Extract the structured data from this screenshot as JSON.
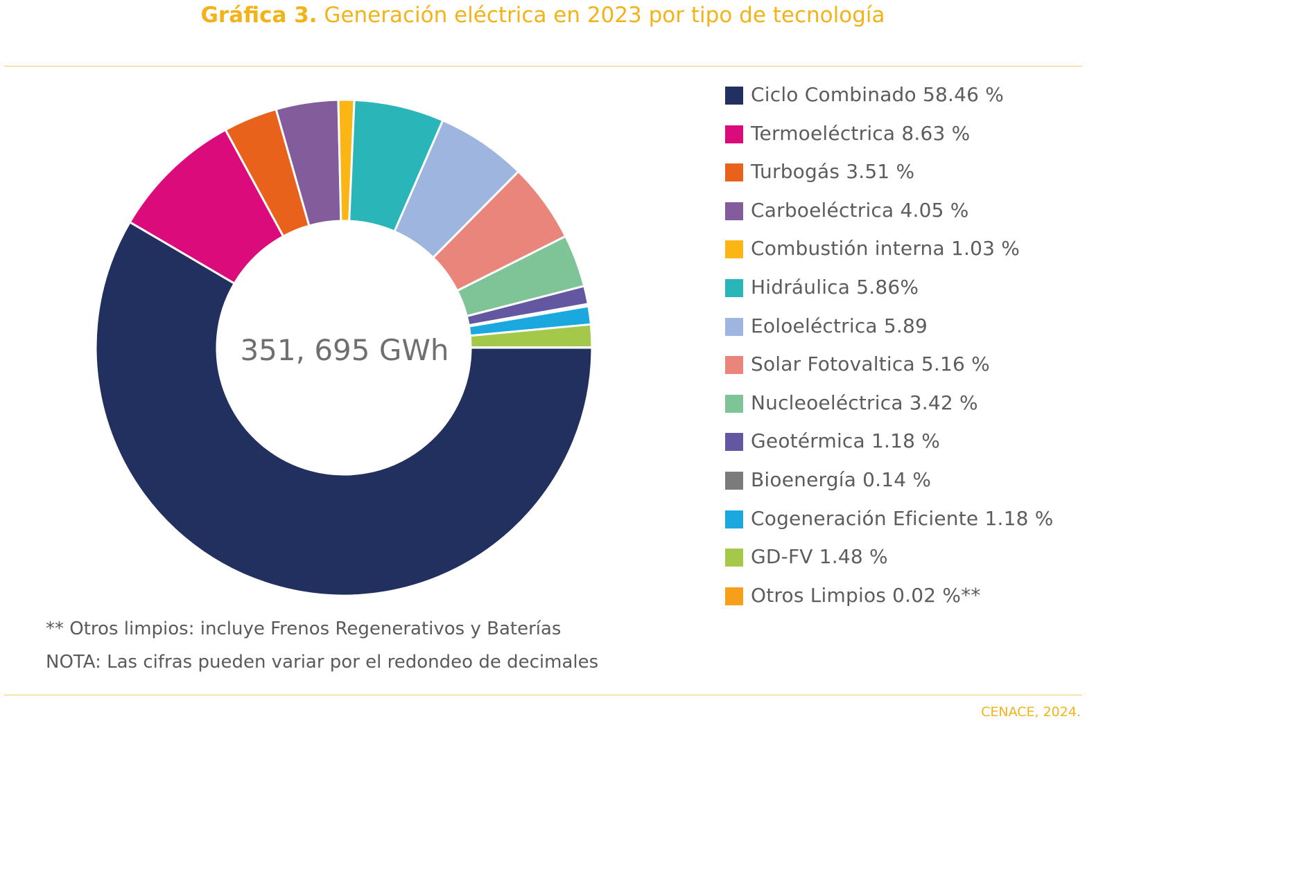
{
  "header": {
    "title_prefix": "Gráfica 3.",
    "title_text": "Generación eléctrica en 2023 por tipo de tecnología"
  },
  "chart_data": {
    "type": "pie",
    "variant": "donut",
    "center_label": "351, 695 GWh",
    "legend_position": "right",
    "series": [
      {
        "name": "Ciclo Combinado",
        "label": "Ciclo Combinado 58.46 %",
        "value": 58.46,
        "color": "#21305f"
      },
      {
        "name": "Termoeléctrica",
        "label": "Termoeléctrica 8.63 %",
        "value": 8.63,
        "color": "#dc0b7b"
      },
      {
        "name": "Turbogás",
        "label": "Turbogás 3.51 %",
        "value": 3.51,
        "color": "#e9621c"
      },
      {
        "name": "Carboeléctrica",
        "label": "Carboeléctrica 4.05 %",
        "value": 4.05,
        "color": "#835c9c"
      },
      {
        "name": "Combustión interna",
        "label": "Combustión interna 1.03 %",
        "value": 1.03,
        "color": "#fbb514"
      },
      {
        "name": "Hidráulica",
        "label": "Hidráulica 5.86%",
        "value": 5.86,
        "color": "#2ab6b9"
      },
      {
        "name": "Eoloeléctrica",
        "label": "Eoloeléctrica 5.89",
        "value": 5.89,
        "color": "#9db5df"
      },
      {
        "name": "Solar Fotovaltica",
        "label": "Solar Fotovaltica 5.16 %",
        "value": 5.16,
        "color": "#ea857b"
      },
      {
        "name": "Nucleoeléctrica",
        "label": "Nucleoeléctrica 3.42 %",
        "value": 3.42,
        "color": "#7ec497"
      },
      {
        "name": "Geotérmica",
        "label": "Geotérmica 1.18 %",
        "value": 1.18,
        "color": "#6357a2"
      },
      {
        "name": "Bioenergía",
        "label": "Bioenergía 0.14 %",
        "value": 0.14,
        "color": "#7b7b7b"
      },
      {
        "name": "Cogeneración Eficiente",
        "label": "Cogeneración Eficiente 1.18 %",
        "value": 1.18,
        "color": "#1ba8df"
      },
      {
        "name": "GD-FV",
        "label": "GD-FV 1.48 %",
        "value": 1.48,
        "color": "#a4c84a"
      },
      {
        "name": "Otros Limpios",
        "label": "Otros Limpios 0.02 %**",
        "value": 0.02,
        "color": "#f59f1a"
      }
    ]
  },
  "notes": {
    "note_1": "** Otros limpios: incluye Frenos Regenerativos y Baterías",
    "note_2": "NOTA: Las cifras pueden variar por el redondeo de decimales"
  },
  "footer": {
    "source": "CENACE, 2024."
  },
  "colors": {
    "accent": "#f3b318",
    "rule": "#f0cd6a"
  }
}
